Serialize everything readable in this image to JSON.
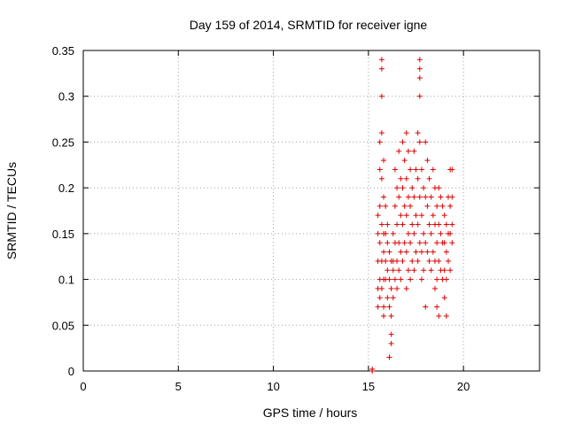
{
  "chart_data": {
    "type": "scatter",
    "title": "Day 159 of 2014, SRMTID for receiver igne",
    "xlabel": "GPS time / hours",
    "ylabel": "SRMTID / TECUs",
    "xlim": [
      0,
      24
    ],
    "ylim": [
      0,
      0.35
    ],
    "xticks": [
      0,
      5,
      10,
      15,
      20
    ],
    "yticks": [
      0,
      0.05,
      0.1,
      0.15,
      0.2,
      0.25,
      0.3,
      0.35
    ],
    "xtick_labels": [
      "0",
      "5",
      "10",
      "15",
      "20"
    ],
    "ytick_labels": [
      "0",
      "0.05",
      "0.1",
      "0.15",
      "0.2",
      "0.25",
      "0.3",
      "0.35"
    ],
    "grid": true,
    "marker": "+",
    "marker_color": "#e00000",
    "series": [
      {
        "points": [
          [
            15.2,
            0.0
          ],
          [
            15.2,
            0.002
          ],
          [
            15.5,
            0.09
          ],
          [
            15.5,
            0.12
          ],
          [
            15.5,
            0.15
          ],
          [
            15.5,
            0.17
          ],
          [
            15.5,
            0.07
          ],
          [
            15.6,
            0.1
          ],
          [
            15.6,
            0.14
          ],
          [
            15.6,
            0.18
          ],
          [
            15.6,
            0.25
          ],
          [
            15.6,
            0.22
          ],
          [
            15.6,
            0.08
          ],
          [
            15.7,
            0.34
          ],
          [
            15.7,
            0.33
          ],
          [
            15.7,
            0.3
          ],
          [
            15.7,
            0.26
          ],
          [
            15.7,
            0.21
          ],
          [
            15.7,
            0.16
          ],
          [
            15.7,
            0.12
          ],
          [
            15.7,
            0.09
          ],
          [
            15.8,
            0.23
          ],
          [
            15.8,
            0.19
          ],
          [
            15.8,
            0.15
          ],
          [
            15.8,
            0.13
          ],
          [
            15.8,
            0.1
          ],
          [
            15.8,
            0.07
          ],
          [
            15.8,
            0.06
          ],
          [
            15.9,
            0.15
          ],
          [
            15.9,
            0.12
          ],
          [
            15.9,
            0.1
          ],
          [
            15.9,
            0.18
          ],
          [
            16.0,
            0.14
          ],
          [
            16.0,
            0.11
          ],
          [
            16.0,
            0.08
          ],
          [
            16.0,
            0.16
          ],
          [
            16.1,
            0.13
          ],
          [
            16.1,
            0.1
          ],
          [
            16.1,
            0.07
          ],
          [
            16.1,
            0.015
          ],
          [
            16.2,
            0.12
          ],
          [
            16.2,
            0.09
          ],
          [
            16.2,
            0.06
          ],
          [
            16.2,
            0.04
          ],
          [
            16.2,
            0.03
          ],
          [
            16.3,
            0.15
          ],
          [
            16.3,
            0.11
          ],
          [
            16.3,
            0.08
          ],
          [
            16.3,
            0.12
          ],
          [
            16.4,
            0.18
          ],
          [
            16.4,
            0.14
          ],
          [
            16.4,
            0.1
          ],
          [
            16.4,
            0.22
          ],
          [
            16.5,
            0.16
          ],
          [
            16.5,
            0.12
          ],
          [
            16.5,
            0.09
          ],
          [
            16.5,
            0.2
          ],
          [
            16.6,
            0.24
          ],
          [
            16.6,
            0.19
          ],
          [
            16.6,
            0.14
          ],
          [
            16.6,
            0.11
          ],
          [
            16.7,
            0.21
          ],
          [
            16.7,
            0.17
          ],
          [
            16.7,
            0.13
          ],
          [
            16.7,
            0.1
          ],
          [
            16.8,
            0.25
          ],
          [
            16.8,
            0.2
          ],
          [
            16.8,
            0.16
          ],
          [
            16.8,
            0.12
          ],
          [
            16.9,
            0.23
          ],
          [
            16.9,
            0.18
          ],
          [
            16.9,
            0.14
          ],
          [
            17.0,
            0.26
          ],
          [
            17.0,
            0.21
          ],
          [
            17.0,
            0.17
          ],
          [
            17.0,
            0.13
          ],
          [
            17.0,
            0.09
          ],
          [
            17.1,
            0.24
          ],
          [
            17.1,
            0.19
          ],
          [
            17.1,
            0.15
          ],
          [
            17.1,
            0.11
          ],
          [
            17.2,
            0.22
          ],
          [
            17.2,
            0.18
          ],
          [
            17.2,
            0.14
          ],
          [
            17.2,
            0.1
          ],
          [
            17.3,
            0.2
          ],
          [
            17.3,
            0.16
          ],
          [
            17.3,
            0.12
          ],
          [
            17.4,
            0.24
          ],
          [
            17.4,
            0.19
          ],
          [
            17.4,
            0.15
          ],
          [
            17.4,
            0.11
          ],
          [
            17.5,
            0.22
          ],
          [
            17.5,
            0.17
          ],
          [
            17.5,
            0.13
          ],
          [
            17.6,
            0.26
          ],
          [
            17.6,
            0.21
          ],
          [
            17.6,
            0.16
          ],
          [
            17.6,
            0.12
          ],
          [
            17.7,
            0.34
          ],
          [
            17.7,
            0.33
          ],
          [
            17.7,
            0.32
          ],
          [
            17.7,
            0.3
          ],
          [
            17.7,
            0.25
          ],
          [
            17.7,
            0.19
          ],
          [
            17.7,
            0.14
          ],
          [
            17.8,
            0.22
          ],
          [
            17.8,
            0.17
          ],
          [
            17.8,
            0.13
          ],
          [
            17.8,
            0.1
          ],
          [
            17.9,
            0.2
          ],
          [
            17.9,
            0.15
          ],
          [
            17.9,
            0.11
          ],
          [
            18.0,
            0.25
          ],
          [
            18.0,
            0.19
          ],
          [
            18.0,
            0.14
          ],
          [
            18.0,
            0.07
          ],
          [
            18.1,
            0.23
          ],
          [
            18.1,
            0.18
          ],
          [
            18.1,
            0.13
          ],
          [
            18.2,
            0.21
          ],
          [
            18.2,
            0.16
          ],
          [
            18.2,
            0.12
          ],
          [
            18.3,
            0.19
          ],
          [
            18.3,
            0.15
          ],
          [
            18.3,
            0.11
          ],
          [
            18.4,
            0.22
          ],
          [
            18.4,
            0.17
          ],
          [
            18.4,
            0.13
          ],
          [
            18.5,
            0.2
          ],
          [
            18.5,
            0.16
          ],
          [
            18.5,
            0.12
          ],
          [
            18.5,
            0.09
          ],
          [
            18.6,
            0.18
          ],
          [
            18.6,
            0.14
          ],
          [
            18.6,
            0.1
          ],
          [
            18.6,
            0.07
          ],
          [
            18.7,
            0.2
          ],
          [
            18.7,
            0.16
          ],
          [
            18.7,
            0.12
          ],
          [
            18.7,
            0.06
          ],
          [
            18.8,
            0.19
          ],
          [
            18.8,
            0.15
          ],
          [
            18.8,
            0.11
          ],
          [
            18.9,
            0.18
          ],
          [
            18.9,
            0.14
          ],
          [
            18.9,
            0.1
          ],
          [
            19.0,
            0.17
          ],
          [
            19.0,
            0.14
          ],
          [
            19.0,
            0.11
          ],
          [
            19.0,
            0.08
          ],
          [
            19.1,
            0.16
          ],
          [
            19.1,
            0.13
          ],
          [
            19.1,
            0.1
          ],
          [
            19.1,
            0.06
          ],
          [
            19.2,
            0.19
          ],
          [
            19.2,
            0.15
          ],
          [
            19.2,
            0.12
          ],
          [
            19.3,
            0.18
          ],
          [
            19.3,
            0.15
          ],
          [
            19.3,
            0.22
          ],
          [
            19.3,
            0.11
          ],
          [
            19.4,
            0.19
          ],
          [
            19.4,
            0.16
          ],
          [
            19.4,
            0.14
          ],
          [
            19.4,
            0.22
          ]
        ]
      }
    ]
  }
}
